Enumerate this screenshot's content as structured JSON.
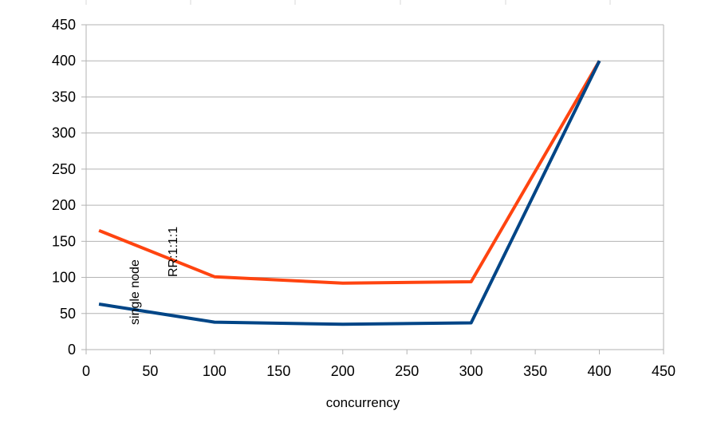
{
  "chart_data": {
    "type": "line",
    "title": "",
    "xlabel": "concurrency",
    "ylabel": "",
    "xlim": [
      0,
      450
    ],
    "ylim": [
      0,
      450
    ],
    "x_ticks": [
      0,
      50,
      100,
      150,
      200,
      250,
      300,
      350,
      400,
      450
    ],
    "y_ticks": [
      0,
      50,
      100,
      150,
      200,
      250,
      300,
      350,
      400,
      450
    ],
    "grid": "horizontal",
    "legend": "none",
    "series": [
      {
        "name": "RR:1:1:1",
        "color": "#ff4410",
        "x": [
          10,
          100,
          200,
          300,
          400
        ],
        "y": [
          165,
          101,
          92,
          94,
          400
        ]
      },
      {
        "name": "single node",
        "color": "#004586",
        "x": [
          10,
          100,
          200,
          300,
          400
        ],
        "y": [
          63,
          38,
          35,
          37,
          400
        ]
      }
    ]
  }
}
